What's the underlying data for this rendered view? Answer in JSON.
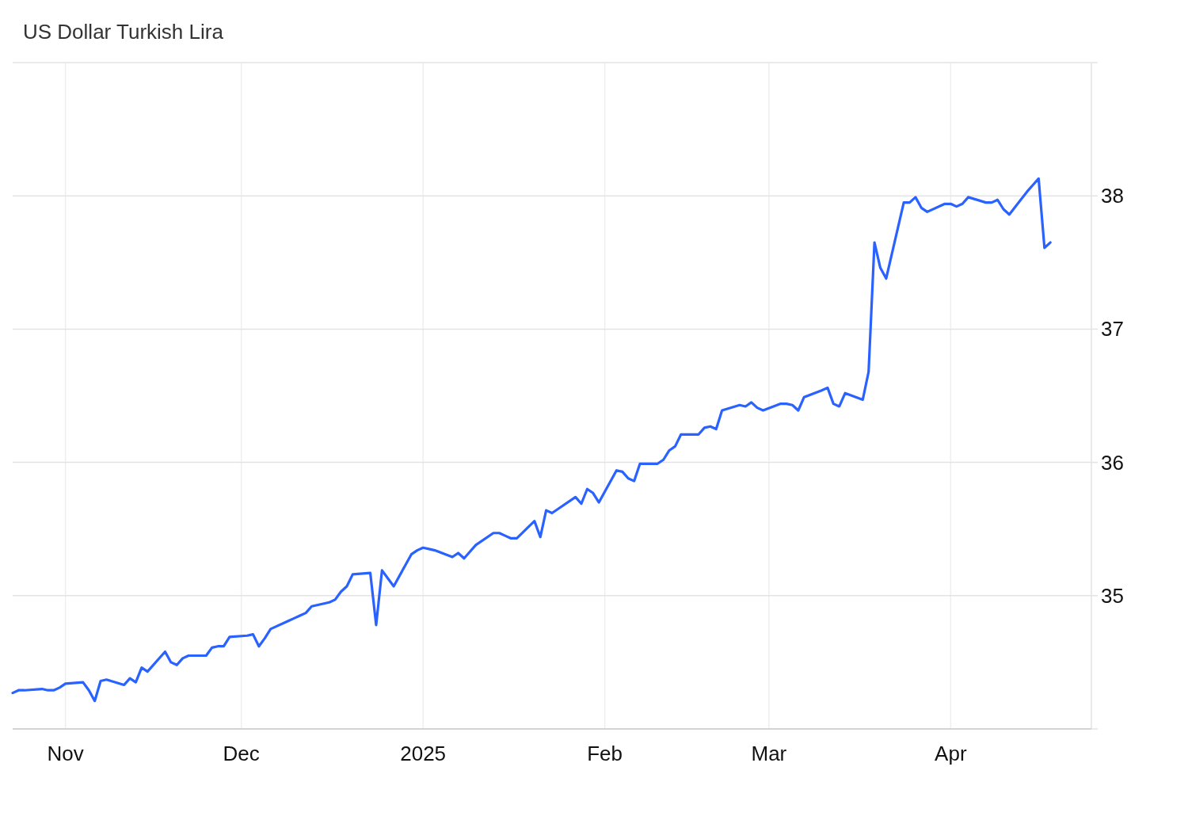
{
  "chart_data": {
    "type": "line",
    "title": "US Dollar Turkish Lira",
    "x": [
      "2024-10-23",
      "2024-10-24",
      "2024-10-25",
      "2024-10-28",
      "2024-10-29",
      "2024-10-30",
      "2024-10-31",
      "2024-11-01",
      "2024-11-04",
      "2024-11-05",
      "2024-11-06",
      "2024-11-07",
      "2024-11-08",
      "2024-11-11",
      "2024-11-12",
      "2024-11-13",
      "2024-11-14",
      "2024-11-15",
      "2024-11-18",
      "2024-11-19",
      "2024-11-20",
      "2024-11-21",
      "2024-11-22",
      "2024-11-25",
      "2024-11-26",
      "2024-11-27",
      "2024-11-28",
      "2024-11-29",
      "2024-12-02",
      "2024-12-03",
      "2024-12-04",
      "2024-12-05",
      "2024-12-06",
      "2024-12-09",
      "2024-12-10",
      "2024-12-11",
      "2024-12-12",
      "2024-12-13",
      "2024-12-16",
      "2024-12-17",
      "2024-12-18",
      "2024-12-19",
      "2024-12-20",
      "2024-12-23",
      "2024-12-24",
      "2024-12-25",
      "2024-12-26",
      "2024-12-27",
      "2024-12-30",
      "2024-12-31",
      "2025-01-01",
      "2025-01-02",
      "2025-01-03",
      "2025-01-06",
      "2025-01-07",
      "2025-01-08",
      "2025-01-09",
      "2025-01-10",
      "2025-01-13",
      "2025-01-14",
      "2025-01-15",
      "2025-01-16",
      "2025-01-17",
      "2025-01-20",
      "2025-01-21",
      "2025-01-22",
      "2025-01-23",
      "2025-01-24",
      "2025-01-27",
      "2025-01-28",
      "2025-01-29",
      "2025-01-30",
      "2025-01-31",
      "2025-02-03",
      "2025-02-04",
      "2025-02-05",
      "2025-02-06",
      "2025-02-07",
      "2025-02-10",
      "2025-02-11",
      "2025-02-12",
      "2025-02-13",
      "2025-02-14",
      "2025-02-17",
      "2025-02-18",
      "2025-02-19",
      "2025-02-20",
      "2025-02-21",
      "2025-02-24",
      "2025-02-25",
      "2025-02-26",
      "2025-02-27",
      "2025-02-28",
      "2025-03-03",
      "2025-03-04",
      "2025-03-05",
      "2025-03-06",
      "2025-03-07",
      "2025-03-10",
      "2025-03-11",
      "2025-03-12",
      "2025-03-13",
      "2025-03-14",
      "2025-03-17",
      "2025-03-18",
      "2025-03-19",
      "2025-03-20",
      "2025-03-21",
      "2025-03-24",
      "2025-03-25",
      "2025-03-26",
      "2025-03-27",
      "2025-03-28",
      "2025-03-31",
      "2025-04-01",
      "2025-04-02",
      "2025-04-03",
      "2025-04-04",
      "2025-04-07",
      "2025-04-08",
      "2025-04-09",
      "2025-04-10",
      "2025-04-11",
      "2025-04-14",
      "2025-04-15",
      "2025-04-16",
      "2025-04-17",
      "2025-04-18"
    ],
    "series": [
      {
        "color": "#2962ff",
        "values": [
          34.27,
          34.29,
          34.29,
          34.3,
          34.29,
          34.29,
          34.31,
          34.34,
          34.35,
          34.29,
          34.21,
          34.36,
          34.37,
          34.33,
          34.38,
          34.35,
          34.46,
          34.43,
          34.58,
          34.5,
          34.48,
          34.53,
          34.55,
          34.55,
          34.61,
          34.62,
          34.62,
          34.69,
          34.7,
          34.71,
          34.62,
          34.68,
          34.75,
          34.81,
          34.83,
          34.85,
          34.87,
          34.92,
          34.95,
          34.97,
          35.03,
          35.07,
          35.16,
          35.17,
          34.78,
          35.19,
          35.13,
          35.07,
          35.31,
          35.34,
          35.36,
          35.35,
          35.34,
          35.29,
          35.32,
          35.28,
          35.33,
          35.38,
          35.47,
          35.47,
          35.45,
          35.43,
          35.43,
          35.56,
          35.44,
          35.64,
          35.62,
          35.65,
          35.74,
          35.69,
          35.8,
          35.77,
          35.7,
          35.94,
          35.93,
          35.88,
          35.86,
          35.99,
          35.99,
          36.02,
          36.09,
          36.12,
          36.21,
          36.21,
          36.26,
          36.27,
          36.25,
          36.39,
          36.43,
          36.42,
          36.45,
          36.41,
          36.39,
          36.44,
          36.44,
          36.43,
          36.39,
          36.49,
          36.54,
          36.56,
          36.44,
          36.42,
          36.52,
          36.47,
          36.68,
          37.65,
          37.46,
          37.38,
          37.95,
          37.95,
          37.99,
          37.91,
          37.88,
          37.94,
          37.94,
          37.92,
          37.94,
          37.99,
          37.95,
          37.95,
          37.97,
          37.9,
          37.86,
          38.03,
          38.08,
          38.13,
          37.61,
          37.65
        ]
      }
    ],
    "xlim": [
      "2024-10-23",
      "2025-04-25"
    ],
    "xticks": [
      {
        "value": "2024-11-01",
        "label": "Nov"
      },
      {
        "value": "2024-12-01",
        "label": "Dec"
      },
      {
        "value": "2025-01-01",
        "label": "2025"
      },
      {
        "value": "2025-02-01",
        "label": "Feb"
      },
      {
        "value": "2025-03-01",
        "label": "Mar"
      },
      {
        "value": "2025-04-01",
        "label": "Apr"
      }
    ],
    "ylim": [
      34,
      39
    ],
    "yticks": [
      {
        "value": 34,
        "label": null
      },
      35,
      36,
      37,
      38,
      {
        "value": 39,
        "label": null
      }
    ],
    "grid": true,
    "line_style": "solid"
  }
}
